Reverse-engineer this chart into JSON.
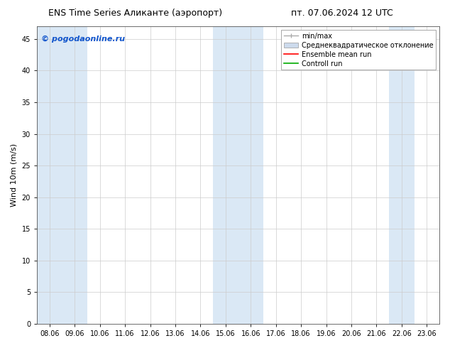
{
  "title_left": "ENS Time Series Аликанте (аэропорт)",
  "title_right": "пт. 07.06.2024 12 UTC",
  "ylabel": "Wind 10m (m/s)",
  "watermark": "© pogodaonline.ru",
  "x_labels": [
    "08.06",
    "09.06",
    "10.06",
    "11.06",
    "12.06",
    "13.06",
    "14.06",
    "15.06",
    "16.06",
    "17.06",
    "18.06",
    "19.06",
    "20.06",
    "21.06",
    "22.06",
    "23.06"
  ],
  "x_ticks": [
    0,
    1,
    2,
    3,
    4,
    5,
    6,
    7,
    8,
    9,
    10,
    11,
    12,
    13,
    14,
    15
  ],
  "ylim": [
    0,
    47
  ],
  "yticks": [
    0,
    5,
    10,
    15,
    20,
    25,
    30,
    35,
    40,
    45
  ],
  "background_color": "#ffffff",
  "plot_bg_color": "#ffffff",
  "shaded_columns": [
    0,
    1,
    7,
    8,
    14
  ],
  "shaded_color": "#dae8f5",
  "legend_items": [
    {
      "label": "min/max",
      "color": "#aaaaaa",
      "type": "errorbar"
    },
    {
      "label": "Среднеквадратическое отклонение",
      "color": "#ccdaec",
      "type": "band"
    },
    {
      "label": "Ensemble mean run",
      "color": "#ff0000",
      "type": "line"
    },
    {
      "label": "Controll run",
      "color": "#00aa00",
      "type": "line"
    }
  ],
  "watermark_color": "#1155cc",
  "title_fontsize": 9,
  "axis_label_fontsize": 8,
  "tick_fontsize": 7,
  "legend_fontsize": 7,
  "fig_width": 6.34,
  "fig_height": 4.9,
  "dpi": 100
}
